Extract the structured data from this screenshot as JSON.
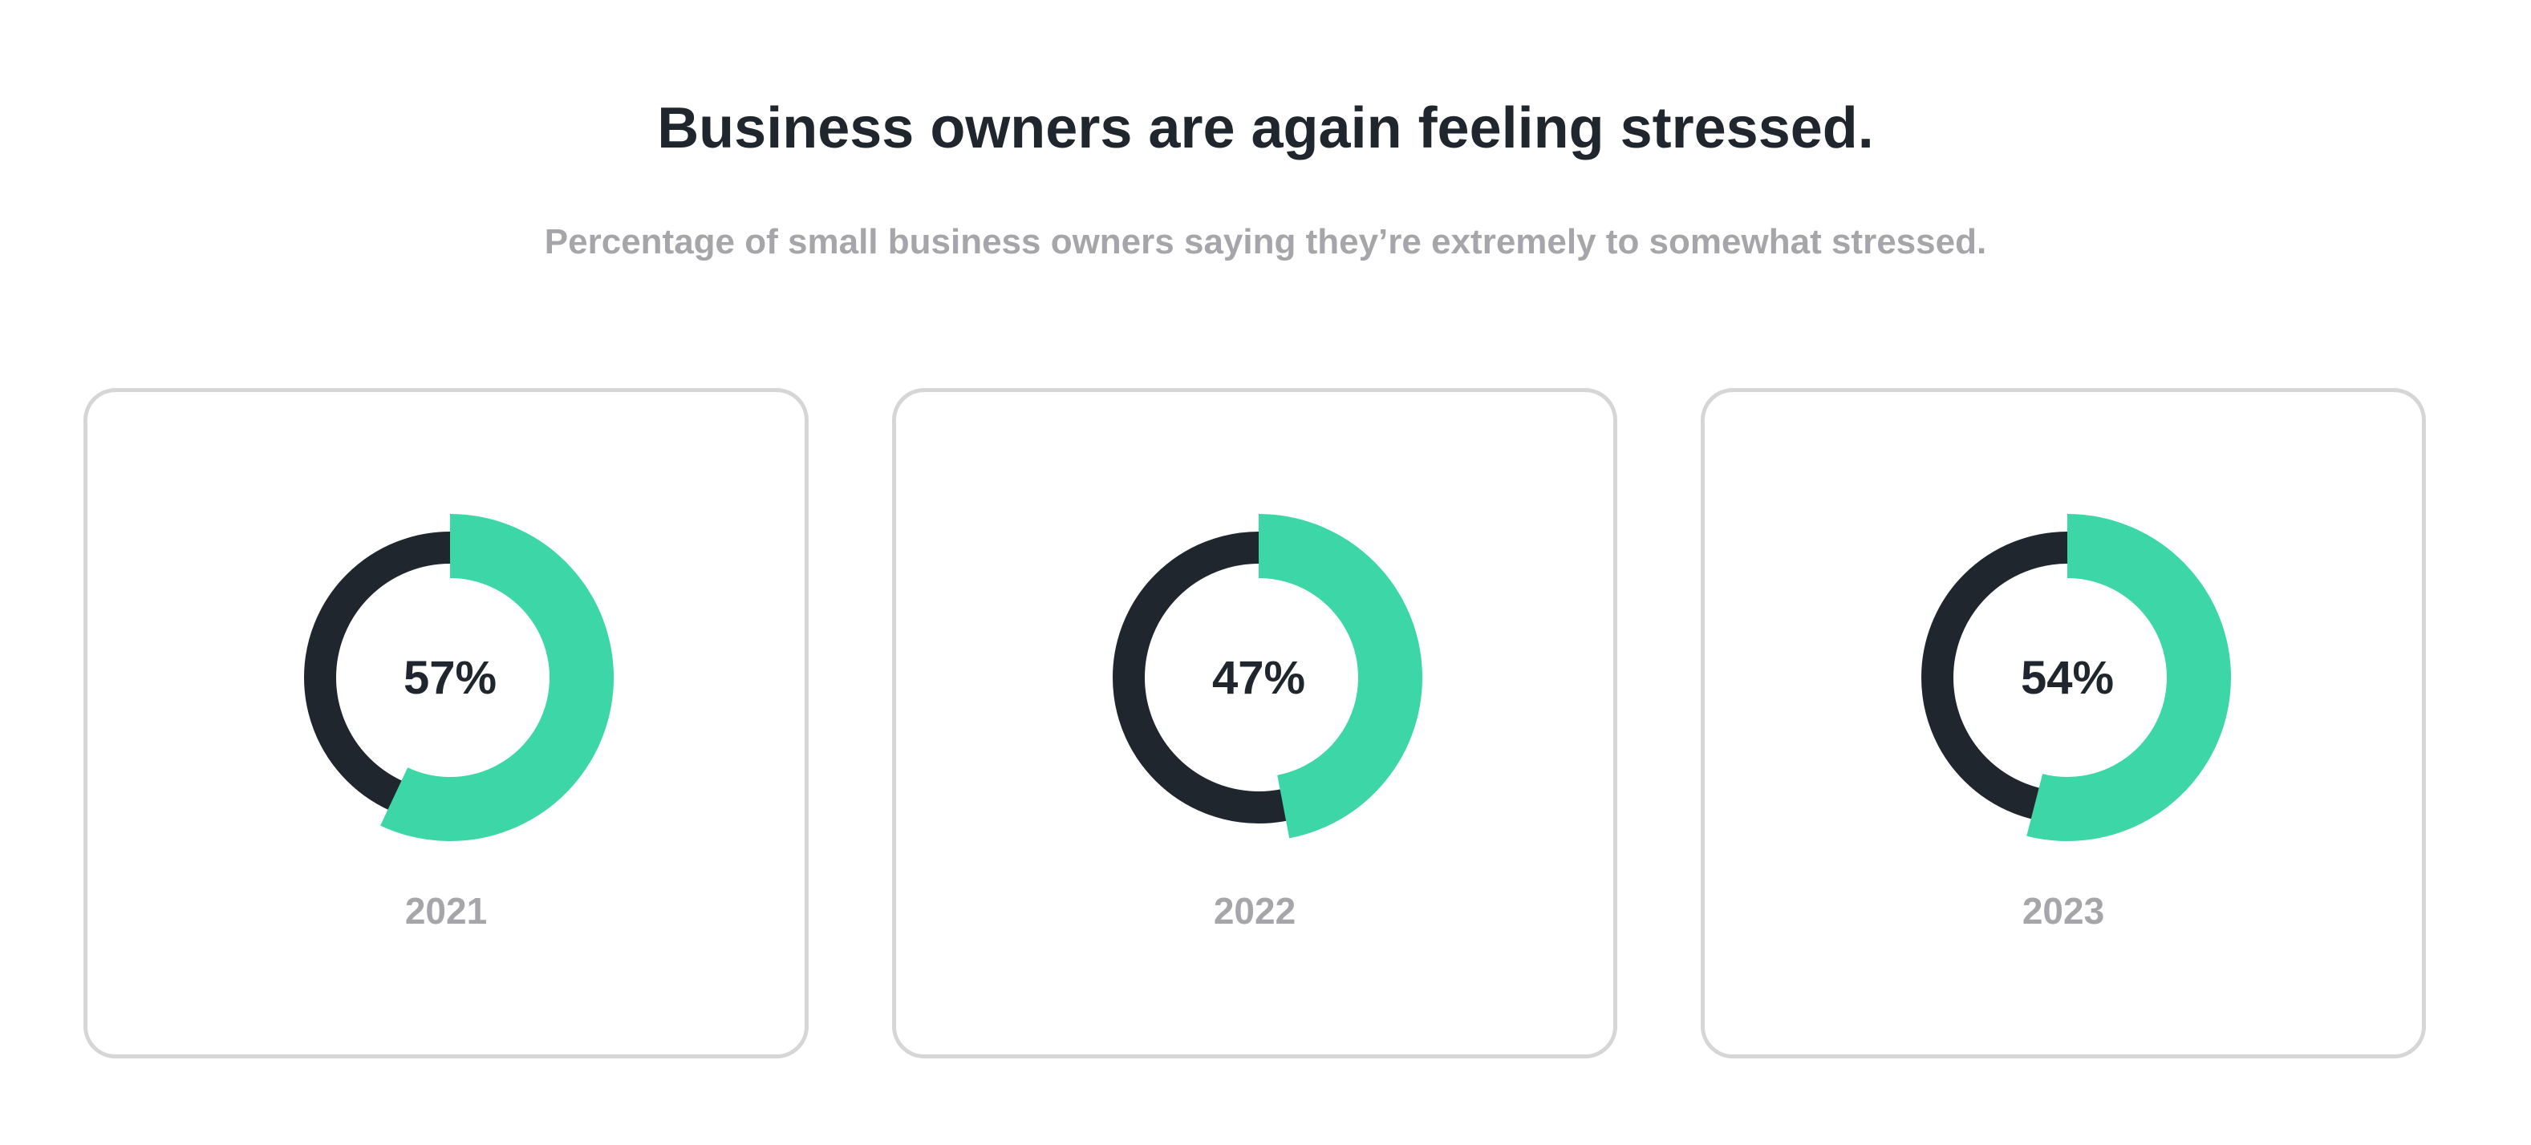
{
  "header": {
    "title": "Business owners are again feeling stressed.",
    "subtitle": "Percentage of small business owners saying they’re extremely to somewhat stressed."
  },
  "colors": {
    "accent": "#3dd6a6",
    "base": "#1f262d",
    "muted": "#a6a6aa",
    "card_border": "#d6d6d6"
  },
  "chart_data": [
    {
      "type": "pie",
      "year": "2021",
      "value": 57,
      "value_label": "57%",
      "max": 100
    },
    {
      "type": "pie",
      "year": "2022",
      "value": 47,
      "value_label": "47%",
      "max": 100
    },
    {
      "type": "pie",
      "year": "2023",
      "value": 54,
      "value_label": "54%",
      "max": 100
    }
  ]
}
